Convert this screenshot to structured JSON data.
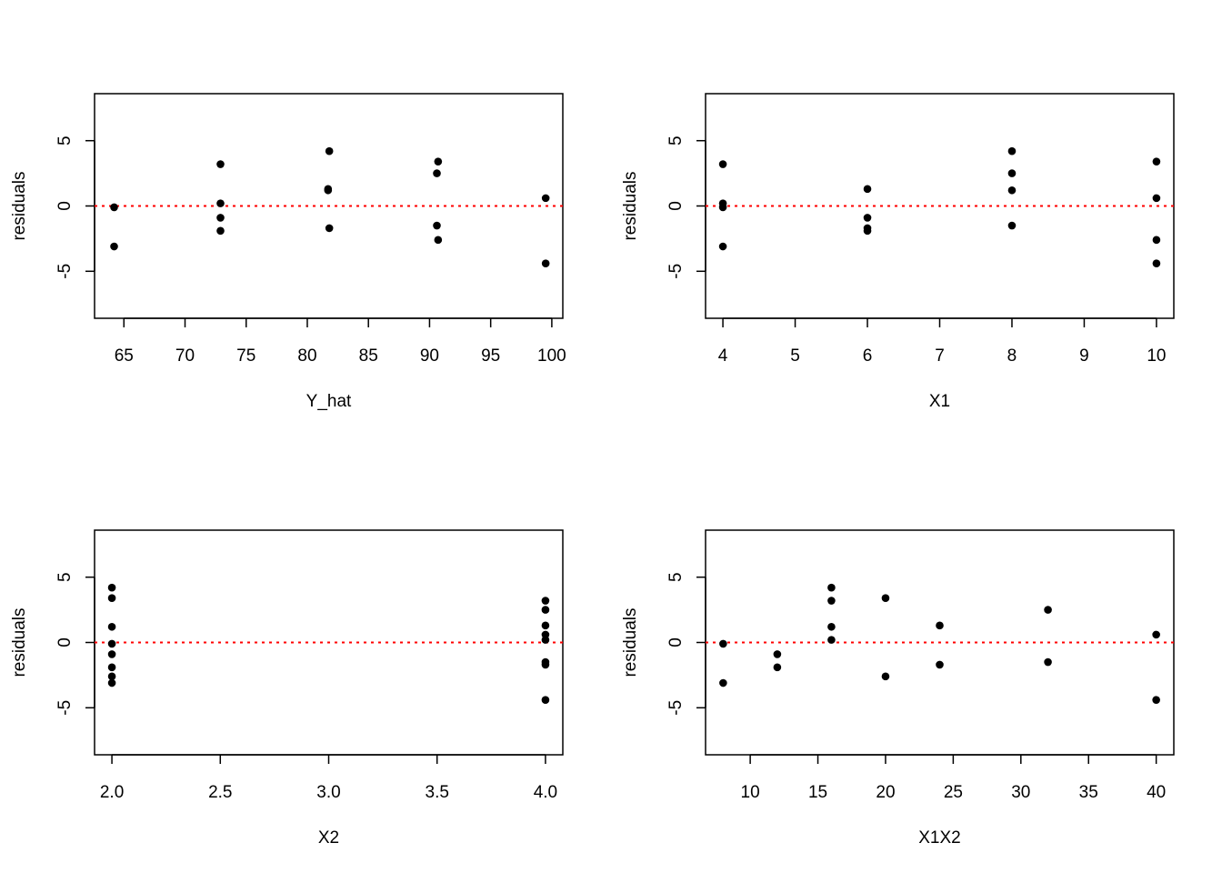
{
  "chart_data": [
    {
      "type": "scatter",
      "xlabel": "Y_hat",
      "ylabel": "residuals",
      "xlim": [
        62.6,
        100.9
      ],
      "ylim": [
        -8.6,
        8.6
      ],
      "xticks": [
        65,
        70,
        75,
        80,
        85,
        90,
        95,
        100
      ],
      "yticks": [
        -5,
        0,
        5
      ],
      "x": [
        64.2,
        64.2,
        72.9,
        72.9,
        72.9,
        72.9,
        81.7,
        81.7,
        81.8,
        81.8,
        90.6,
        90.6,
        90.7,
        90.7,
        99.5,
        99.5
      ],
      "y": [
        -0.1,
        -3.1,
        3.2,
        0.2,
        -0.9,
        -1.9,
        1.3,
        1.2,
        4.2,
        -1.7,
        2.5,
        -1.5,
        3.4,
        -2.6,
        0.6,
        -4.4
      ],
      "reference_line": {
        "y": 0,
        "color": "#FF0000",
        "style": "dotted"
      },
      "grid": false,
      "legend": "none"
    },
    {
      "type": "scatter",
      "xlabel": "X1",
      "ylabel": "residuals",
      "xlim": [
        3.76,
        10.24
      ],
      "ylim": [
        -8.6,
        8.6
      ],
      "xticks": [
        4,
        5,
        6,
        7,
        8,
        9,
        10
      ],
      "yticks": [
        -5,
        0,
        5
      ],
      "x": [
        4,
        4,
        4,
        4,
        6,
        6,
        6,
        6,
        8,
        8,
        8,
        8,
        10,
        10,
        10,
        10
      ],
      "y": [
        3.2,
        0.2,
        -0.1,
        -3.1,
        1.3,
        -0.9,
        -1.7,
        -1.9,
        4.2,
        2.5,
        1.2,
        -1.5,
        3.4,
        0.6,
        -2.6,
        -4.4
      ],
      "reference_line": {
        "y": 0,
        "color": "#FF0000",
        "style": "dotted"
      },
      "grid": false,
      "legend": "none"
    },
    {
      "type": "scatter",
      "xlabel": "X2",
      "ylabel": "residuals",
      "xlim": [
        1.92,
        4.08
      ],
      "ylim": [
        -8.6,
        8.6
      ],
      "xticks": [
        "2.0",
        "2.5",
        "3.0",
        "3.5",
        "4.0"
      ],
      "yticks": [
        -5,
        0,
        5
      ],
      "x": [
        2,
        2,
        2,
        2,
        2,
        2,
        2,
        2,
        4,
        4,
        4,
        4,
        4,
        4,
        4,
        4
      ],
      "y": [
        4.2,
        3.4,
        1.2,
        -0.1,
        -0.9,
        -1.9,
        -2.6,
        -3.1,
        3.2,
        2.5,
        1.3,
        0.6,
        0.2,
        -1.5,
        -1.7,
        -4.4
      ],
      "reference_line": {
        "y": 0,
        "color": "#FF0000",
        "style": "dotted"
      },
      "grid": false,
      "legend": "none"
    },
    {
      "type": "scatter",
      "xlabel": "X1X2",
      "ylabel": "residuals",
      "xlim": [
        6.7,
        41.3
      ],
      "ylim": [
        -8.6,
        8.6
      ],
      "xticks": [
        10,
        15,
        20,
        25,
        30,
        35,
        40
      ],
      "yticks": [
        -5,
        0,
        5
      ],
      "x": [
        8,
        8,
        12,
        12,
        16,
        16,
        16,
        16,
        20,
        20,
        24,
        24,
        32,
        32,
        40,
        40
      ],
      "y": [
        -0.1,
        -3.1,
        -0.9,
        -1.9,
        4.2,
        3.2,
        1.2,
        0.2,
        3.4,
        -2.6,
        1.3,
        -1.7,
        2.5,
        -1.5,
        0.6,
        -4.4
      ],
      "reference_line": {
        "y": 0,
        "color": "#FF0000",
        "style": "dotted"
      },
      "grid": false,
      "legend": "none"
    }
  ],
  "colors": {
    "points": "#000000",
    "reference_line": "#FF0000",
    "frame": "#000000",
    "background": "#FFFFFF"
  }
}
